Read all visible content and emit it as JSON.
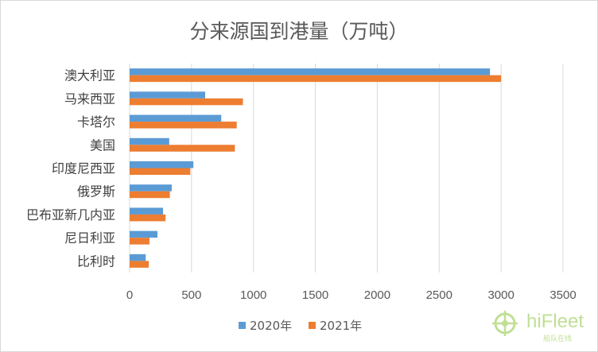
{
  "chart_data": {
    "type": "bar",
    "orientation": "horizontal",
    "title": "分来源国到港量（万吨）",
    "categories": [
      "澳大利亚",
      "马来西亚",
      "卡塔尔",
      "美国",
      "印度尼西亚",
      "俄罗斯",
      "巴布亚新几内亚",
      "尼日利亚",
      "比利时"
    ],
    "series": [
      {
        "name": "2020年",
        "color": "#5b9bd5",
        "values": [
          2910,
          610,
          740,
          320,
          515,
          340,
          270,
          225,
          130
        ]
      },
      {
        "name": "2021年",
        "color": "#ed7d31",
        "values": [
          3000,
          915,
          865,
          850,
          490,
          325,
          290,
          160,
          155
        ]
      }
    ],
    "xlim": [
      0,
      3500
    ],
    "xticks": [
      0,
      500,
      1000,
      1500,
      2000,
      2500,
      3000,
      3500
    ],
    "grid": true,
    "legend_position": "bottom"
  },
  "watermark": {
    "brand": "hiFleet",
    "tagline": "船队在线",
    "icon": "ship-wheel-icon",
    "color": "#8dc63f"
  }
}
